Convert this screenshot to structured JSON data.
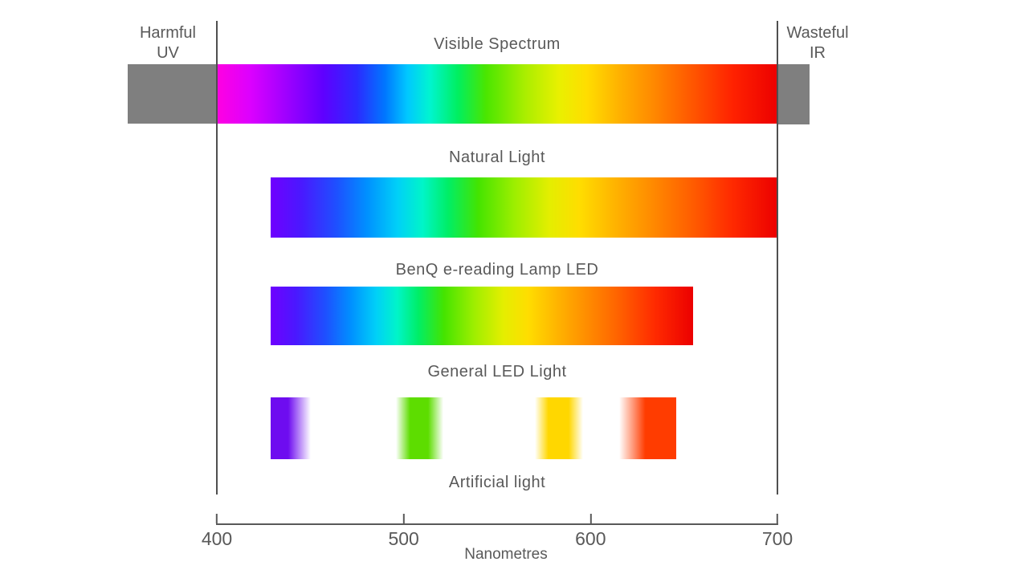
{
  "labels": {
    "uv_line1": "Harmful",
    "uv_line2": "UV",
    "ir_line1": "Wasteful",
    "ir_line2": "IR",
    "artificial": "Artificial light",
    "axis_unit": "Nanometres"
  },
  "axis": {
    "tick_labels": [
      "400",
      "500",
      "600",
      "700"
    ],
    "tick_values": [
      400,
      500,
      600,
      700
    ],
    "min_nm": 400,
    "max_nm": 700
  },
  "chart_data": {
    "type": "area",
    "title": "",
    "xlabel": "Nanometres",
    "x_ticks": [
      400,
      500,
      600,
      700
    ],
    "x_range": [
      400,
      700
    ],
    "grid": false,
    "legend": false,
    "series": [
      {
        "name": "Visible Spectrum",
        "kind": "continuous",
        "range_nm": [
          400,
          700
        ],
        "gradient": "visible"
      },
      {
        "name": "Natural Light",
        "kind": "continuous",
        "range_nm": [
          429,
          700
        ],
        "gradient": "natural"
      },
      {
        "name": "BenQ e-reading Lamp LED",
        "kind": "continuous",
        "range_nm": [
          429,
          655
        ],
        "gradient": "natural"
      },
      {
        "name": "General LED Light",
        "kind": "discrete_bands",
        "bands_nm": [
          [
            429,
            451
          ],
          [
            496,
            521
          ],
          [
            570,
            596
          ],
          [
            614,
            646
          ]
        ],
        "band_gradients": [
          "led_violet",
          "led_green",
          "led_yellow",
          "led_red"
        ],
        "footnote": "Artificial light"
      }
    ],
    "annotations": [
      {
        "text": "Harmful UV",
        "region_nm": [
          null,
          400
        ]
      },
      {
        "text": "Wasteful IR",
        "region_nm": [
          700,
          null
        ]
      }
    ]
  },
  "colors": {
    "text": "#595959",
    "reference_line": "#4f4f4f",
    "uv_ir_block": "#7f7f7f",
    "gradients": {
      "visible": [
        [
          "#ff00e1",
          0
        ],
        [
          "#dc00ff",
          6
        ],
        [
          "#9900ff",
          13
        ],
        [
          "#5f00ff",
          19
        ],
        [
          "#2b2bff",
          25
        ],
        [
          "#0077ff",
          30
        ],
        [
          "#00c8ff",
          34
        ],
        [
          "#00f5d0",
          38
        ],
        [
          "#00ef60",
          43
        ],
        [
          "#4ae600",
          48
        ],
        [
          "#aaee00",
          55
        ],
        [
          "#e9f000",
          61
        ],
        [
          "#ffdd00",
          66
        ],
        [
          "#ffb000",
          72
        ],
        [
          "#ff8800",
          78
        ],
        [
          "#ff5500",
          85
        ],
        [
          "#ff2200",
          92
        ],
        [
          "#ec0000",
          100
        ]
      ],
      "natural": [
        [
          "#6f00ff",
          0
        ],
        [
          "#4a18ff",
          6
        ],
        [
          "#1e50ff",
          13
        ],
        [
          "#0090ff",
          19
        ],
        [
          "#00d0f8",
          25
        ],
        [
          "#00f5c8",
          30
        ],
        [
          "#00ee66",
          35
        ],
        [
          "#44e400",
          41
        ],
        [
          "#9cee00",
          48
        ],
        [
          "#e4ee00",
          55
        ],
        [
          "#ffdd00",
          61
        ],
        [
          "#ffb300",
          68
        ],
        [
          "#ff8c00",
          75
        ],
        [
          "#ff5e00",
          83
        ],
        [
          "#ff2a00",
          91
        ],
        [
          "#ec0000",
          100
        ]
      ],
      "led_violet": [
        [
          "#6e0cf0",
          0
        ],
        [
          "#6e0cf0",
          42
        ],
        [
          "#ffffff",
          96
        ],
        [
          "#ffffff",
          100
        ]
      ],
      "led_green": [
        [
          "#ffffff",
          0
        ],
        [
          "#5ddd00",
          30
        ],
        [
          "#5ddd00",
          68
        ],
        [
          "#ffffff",
          100
        ]
      ],
      "led_yellow": [
        [
          "#ffffff",
          0
        ],
        [
          "#ffd700",
          28
        ],
        [
          "#ffd700",
          70
        ],
        [
          "#ffffff",
          100
        ]
      ],
      "led_red": [
        [
          "#ffffff",
          4
        ],
        [
          "#ff3c00",
          48
        ],
        [
          "#ff3c00",
          100
        ]
      ]
    }
  }
}
